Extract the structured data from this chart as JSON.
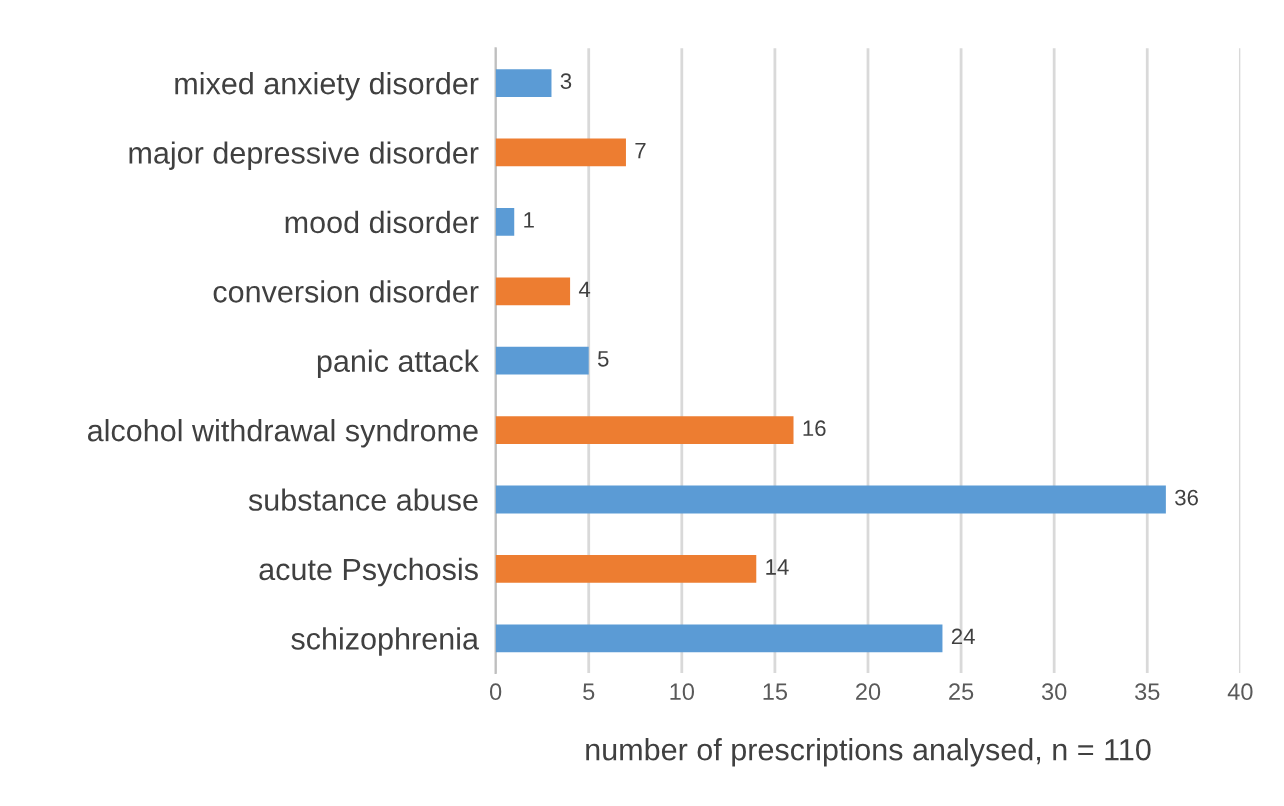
{
  "chart_data": {
    "type": "bar",
    "orientation": "horizontal",
    "xlabel": "number of prescriptions analysed, n = 110",
    "categories": [
      "mixed anxiety disorder",
      "major depressive disorder",
      "mood disorder",
      "conversion disorder",
      "panic attack",
      "alcohol withdrawal syndrome",
      "substance abuse",
      "acute Psychosis",
      "schizophrenia"
    ],
    "values": [
      3,
      7,
      1,
      4,
      5,
      16,
      36,
      14,
      24
    ],
    "colors": [
      "#5b9bd5",
      "#ed7d31",
      "#5b9bd5",
      "#ed7d31",
      "#5b9bd5",
      "#ed7d31",
      "#5b9bd5",
      "#ed7d31",
      "#5b9bd5"
    ],
    "xlim": [
      0,
      40
    ],
    "xticks": [
      0,
      5,
      10,
      15,
      20,
      25,
      30,
      35,
      40
    ],
    "grid": "x",
    "data_labels": true,
    "legend": false
  }
}
